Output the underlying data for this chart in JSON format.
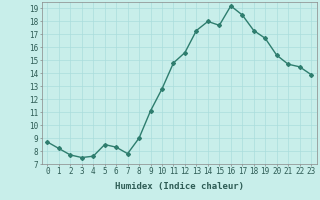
{
  "x": [
    0,
    1,
    2,
    3,
    4,
    5,
    6,
    7,
    8,
    9,
    10,
    11,
    12,
    13,
    14,
    15,
    16,
    17,
    18,
    19,
    20,
    21,
    22,
    23
  ],
  "y": [
    8.7,
    8.2,
    7.7,
    7.5,
    7.6,
    8.5,
    8.3,
    7.8,
    9.0,
    11.1,
    12.8,
    14.8,
    15.6,
    17.3,
    18.0,
    17.7,
    19.2,
    18.5,
    17.3,
    16.7,
    15.4,
    14.7,
    14.5,
    13.9
  ],
  "line_color": "#2e7d6e",
  "bg_color": "#c8eeea",
  "grid_color": "#aadddd",
  "xlabel": "Humidex (Indice chaleur)",
  "ylim": [
    7,
    19.5
  ],
  "xlim": [
    -0.5,
    23.5
  ],
  "yticks": [
    7,
    8,
    9,
    10,
    11,
    12,
    13,
    14,
    15,
    16,
    17,
    18,
    19
  ],
  "xticks": [
    0,
    1,
    2,
    3,
    4,
    5,
    6,
    7,
    8,
    9,
    10,
    11,
    12,
    13,
    14,
    15,
    16,
    17,
    18,
    19,
    20,
    21,
    22,
    23
  ],
  "marker": "D",
  "marker_size": 2.0,
  "line_width": 1.0,
  "tick_fontsize": 5.5,
  "xlabel_fontsize": 6.5
}
